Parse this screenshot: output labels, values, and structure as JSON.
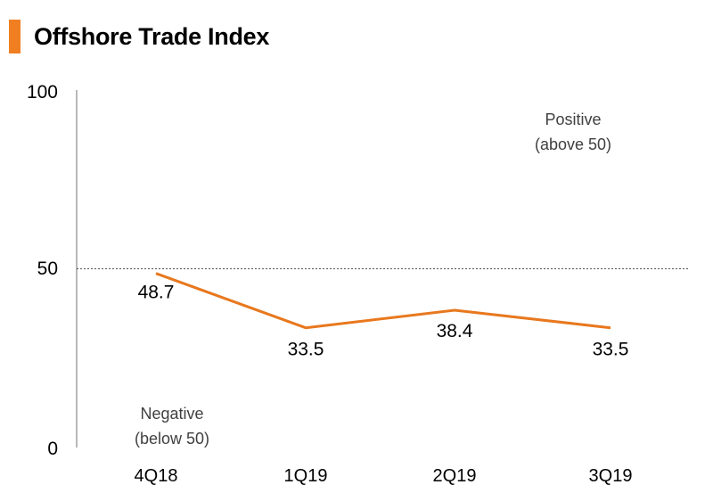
{
  "header": {
    "title": "Offshore Trade Index",
    "accent_color": "#F07F22"
  },
  "chart_data": {
    "type": "line",
    "title": "Offshore Trade Index",
    "categories": [
      "4Q18",
      "1Q19",
      "2Q19",
      "3Q19"
    ],
    "series": [
      {
        "name": "Offshore Trade Index",
        "values": [
          48.7,
          33.5,
          38.4,
          33.5
        ],
        "color": "#E8781E"
      }
    ],
    "data_labels": [
      "48.7",
      "33.5",
      "38.4",
      "33.5"
    ],
    "ylim": [
      0,
      100
    ],
    "yticks": [
      "0",
      "50",
      "100"
    ],
    "reference_line": {
      "value": 50,
      "style": "dotted",
      "color": "#555555"
    },
    "annotations": {
      "positive": [
        "Positive",
        "(above 50)"
      ],
      "negative": [
        "Negative",
        "(below 50)"
      ]
    },
    "xlabel": "",
    "ylabel": "",
    "grid": false
  }
}
